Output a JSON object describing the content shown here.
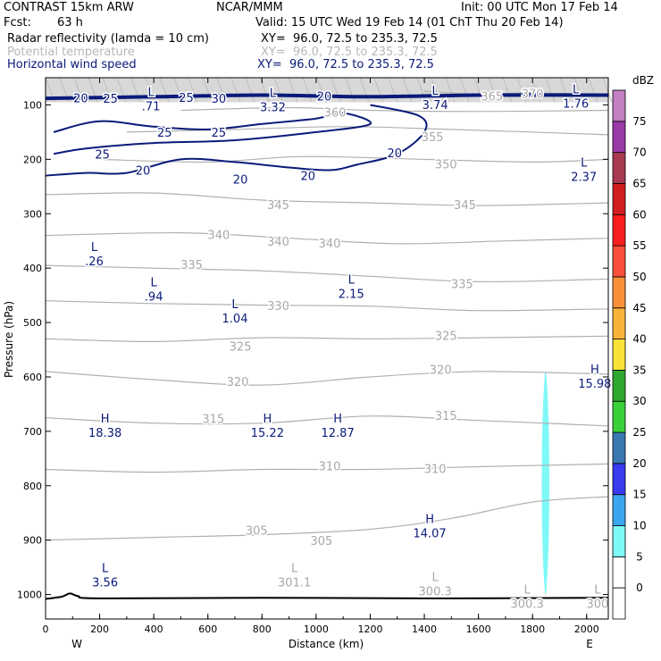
{
  "header": {
    "model": "CONTRAST 15km ARW",
    "org": "NCAR/MMM",
    "init": "Init: 00 UTC Mon 17 Feb 14",
    "fcst_label": "Fcst:",
    "fcst_value": "63 h",
    "valid": "Valid: 15 UTC Wed 19 Feb 14 (01 ChT Thu 20 Feb 14)",
    "fields": [
      {
        "name": "Radar reflectivity (lamda = 10 cm)",
        "xy": "XY=  96.0, 72.5 to 235.3, 72.5",
        "color": "#000000"
      },
      {
        "name": "Potential temperature",
        "xy": "XY=  96.0, 72.5 to 235.3, 72.5",
        "color": "#b8b8b8"
      },
      {
        "name": "Horizontal wind speed",
        "xy": "XY=  96.0, 72.5 to 235.3, 72.5",
        "color": "#0a1a7a"
      }
    ]
  },
  "chart_data": {
    "type": "cross-section",
    "xlabel": "Distance (km)",
    "ylabel": "Pressure (hPa)",
    "x_endpoints": {
      "left": "W",
      "right": "E"
    },
    "xlim": [
      0,
      2080
    ],
    "ylim": [
      1045,
      50
    ],
    "x_ticks": [
      0,
      200,
      400,
      600,
      800,
      1000,
      1200,
      1400,
      1600,
      1800,
      2000
    ],
    "y_ticks": [
      100,
      200,
      300,
      400,
      500,
      600,
      700,
      800,
      900,
      1000
    ],
    "colorbar": {
      "unit": "dBZ",
      "levels": [
        0,
        5,
        10,
        15,
        20,
        25,
        30,
        35,
        40,
        45,
        50,
        55,
        60,
        65,
        70,
        75
      ],
      "colors": [
        "#ffffff",
        "#7ff8f8",
        "#3aa6ee",
        "#3a3aee",
        "#3a78b2",
        "#3ad03a",
        "#2ea82e",
        "#f8e23a",
        "#f8b43a",
        "#f8903a",
        "#f8503a",
        "#f81e1e",
        "#d01e1e",
        "#a83a50",
        "#9a3aa8",
        "#c27fc2"
      ]
    },
    "theta_contours": [
      {
        "label": "370",
        "points": [
          [
            1400,
            75
          ],
          [
            1600,
            80
          ],
          [
            1800,
            78
          ],
          [
            2080,
            82
          ]
        ]
      },
      {
        "label": "360",
        "points": [
          [
            500,
            110
          ],
          [
            900,
            105
          ],
          [
            1200,
            110
          ],
          [
            1600,
            112
          ],
          [
            2080,
            110
          ]
        ]
      },
      {
        "label": "355",
        "points": [
          [
            300,
            150
          ],
          [
            700,
            145
          ],
          [
            1100,
            140
          ],
          [
            1500,
            145
          ],
          [
            2080,
            155
          ]
        ]
      },
      {
        "label": "350",
        "points": [
          [
            200,
            200
          ],
          [
            600,
            205
          ],
          [
            950,
            195
          ],
          [
            1400,
            200
          ],
          [
            1800,
            205
          ],
          [
            2080,
            200
          ]
        ]
      },
      {
        "label": "345",
        "points": [
          [
            0,
            265
          ],
          [
            400,
            262
          ],
          [
            800,
            275
          ],
          [
            1200,
            280
          ],
          [
            1600,
            285
          ],
          [
            2080,
            280
          ]
        ]
      },
      {
        "label": "340",
        "points": [
          [
            0,
            340
          ],
          [
            500,
            335
          ],
          [
            900,
            345
          ],
          [
            1300,
            355
          ],
          [
            1700,
            350
          ],
          [
            2080,
            345
          ]
        ]
      },
      {
        "label": "335",
        "points": [
          [
            0,
            395
          ],
          [
            400,
            400
          ],
          [
            800,
            405
          ],
          [
            1200,
            415
          ],
          [
            1600,
            425
          ],
          [
            2080,
            420
          ]
        ]
      },
      {
        "label": "330",
        "points": [
          [
            0,
            460
          ],
          [
            400,
            465
          ],
          [
            800,
            468
          ],
          [
            1200,
            470
          ],
          [
            1600,
            478
          ],
          [
            2080,
            475
          ]
        ]
      },
      {
        "label": "325",
        "points": [
          [
            0,
            530
          ],
          [
            400,
            535
          ],
          [
            800,
            528
          ],
          [
            1200,
            530
          ],
          [
            1600,
            528
          ],
          [
            2080,
            525
          ]
        ]
      },
      {
        "label": "320",
        "points": [
          [
            0,
            590
          ],
          [
            400,
            605
          ],
          [
            800,
            615
          ],
          [
            1200,
            600
          ],
          [
            1600,
            590
          ],
          [
            2080,
            595
          ]
        ]
      },
      {
        "label": "315",
        "points": [
          [
            0,
            675
          ],
          [
            400,
            685
          ],
          [
            800,
            685
          ],
          [
            1200,
            672
          ],
          [
            1600,
            680
          ],
          [
            2080,
            690
          ]
        ]
      },
      {
        "label": "310",
        "points": [
          [
            0,
            770
          ],
          [
            400,
            775
          ],
          [
            800,
            770
          ],
          [
            1200,
            770
          ],
          [
            1600,
            765
          ],
          [
            2080,
            760
          ]
        ]
      },
      {
        "label": "305",
        "points": [
          [
            0,
            900
          ],
          [
            400,
            895
          ],
          [
            800,
            890
          ],
          [
            1200,
            880
          ],
          [
            1500,
            860
          ],
          [
            1800,
            830
          ],
          [
            2080,
            820
          ]
        ]
      }
    ],
    "theta_labels": [
      {
        "text": "370",
        "x": 1800,
        "p": 80
      },
      {
        "text": "365",
        "x": 1650,
        "p": 85
      },
      {
        "text": "360",
        "x": 1070,
        "p": 115
      },
      {
        "text": "355",
        "x": 1430,
        "p": 160
      },
      {
        "text": "350",
        "x": 1480,
        "p": 210
      },
      {
        "text": "345",
        "x": 1550,
        "p": 285
      },
      {
        "text": "345",
        "x": 860,
        "p": 285
      },
      {
        "text": "340",
        "x": 640,
        "p": 340
      },
      {
        "text": "340",
        "x": 1050,
        "p": 355
      },
      {
        "text": "340",
        "x": 860,
        "p": 352
      },
      {
        "text": "335",
        "x": 540,
        "p": 395
      },
      {
        "text": "335",
        "x": 1540,
        "p": 430
      },
      {
        "text": "330",
        "x": 860,
        "p": 470
      },
      {
        "text": "325",
        "x": 1480,
        "p": 525
      },
      {
        "text": "325",
        "x": 720,
        "p": 545
      },
      {
        "text": "320",
        "x": 1460,
        "p": 588
      },
      {
        "text": "320",
        "x": 710,
        "p": 610
      },
      {
        "text": "315",
        "x": 1480,
        "p": 672
      },
      {
        "text": "315",
        "x": 620,
        "p": 678
      },
      {
        "text": "310",
        "x": 1440,
        "p": 770
      },
      {
        "text": "310",
        "x": 1050,
        "p": 765
      },
      {
        "text": "305",
        "x": 780,
        "p": 883
      },
      {
        "text": "305",
        "x": 1020,
        "p": 902
      }
    ],
    "wind_contours": [
      {
        "label": "20",
        "points": [
          [
            0,
            88
          ],
          [
            400,
            85
          ],
          [
            800,
            82
          ],
          [
            1200,
            85
          ],
          [
            1600,
            82
          ],
          [
            2080,
            82
          ]
        ]
      },
      {
        "label": "25",
        "points": [
          [
            30,
            150
          ],
          [
            200,
            130
          ],
          [
            400,
            140
          ],
          [
            600,
            145
          ],
          [
            800,
            135
          ],
          [
            1000,
            125
          ],
          [
            1100,
            115
          ],
          [
            1200,
            135
          ],
          [
            1000,
            150
          ],
          [
            700,
            165
          ],
          [
            400,
            170
          ],
          [
            150,
            180
          ],
          [
            30,
            190
          ]
        ]
      },
      {
        "label": "20",
        "points": [
          [
            0,
            230
          ],
          [
            150,
            225
          ],
          [
            300,
            225
          ],
          [
            500,
            200
          ],
          [
            700,
            205
          ],
          [
            900,
            215
          ],
          [
            1050,
            220
          ],
          [
            1150,
            210
          ],
          [
            1300,
            190
          ],
          [
            1400,
            150
          ],
          [
            1380,
            120
          ],
          [
            1200,
            100
          ]
        ]
      }
    ],
    "wind_labels": [
      {
        "text": "20",
        "x": 130,
        "p": 87
      },
      {
        "text": "25",
        "x": 240,
        "p": 88
      },
      {
        "text": "25",
        "x": 520,
        "p": 86
      },
      {
        "text": "30",
        "x": 640,
        "p": 88
      },
      {
        "text": "20",
        "x": 1030,
        "p": 84
      },
      {
        "text": "25",
        "x": 440,
        "p": 150
      },
      {
        "text": "25",
        "x": 640,
        "p": 150
      },
      {
        "text": "25",
        "x": 210,
        "p": 190
      },
      {
        "text": "20",
        "x": 360,
        "p": 220
      },
      {
        "text": "20",
        "x": 720,
        "p": 236
      },
      {
        "text": "20",
        "x": 970,
        "p": 230
      },
      {
        "text": "20",
        "x": 1290,
        "p": 188
      }
    ],
    "extrema": [
      {
        "type": "L",
        "value": ".71",
        "x": 390,
        "p": 90
      },
      {
        "type": "L",
        "value": "3.32",
        "x": 840,
        "p": 92
      },
      {
        "type": "L",
        "value": "3.74",
        "x": 1440,
        "p": 88
      },
      {
        "type": "L",
        "value": "1.76",
        "x": 1960,
        "p": 85
      },
      {
        "type": "L",
        "value": "2.37",
        "x": 1990,
        "p": 220
      },
      {
        "type": "L",
        "value": ".26",
        "x": 180,
        "p": 375
      },
      {
        "type": "L",
        "value": ".94",
        "x": 400,
        "p": 440
      },
      {
        "type": "L",
        "value": "1.04",
        "x": 700,
        "p": 480
      },
      {
        "type": "L",
        "value": "2.15",
        "x": 1130,
        "p": 435
      },
      {
        "type": "H",
        "value": "15.98",
        "x": 2030,
        "p": 600
      },
      {
        "type": "H",
        "value": "18.38",
        "x": 220,
        "p": 690
      },
      {
        "type": "H",
        "value": "15.22",
        "x": 820,
        "p": 690
      },
      {
        "type": "H",
        "value": "12.87",
        "x": 1080,
        "p": 690
      },
      {
        "type": "H",
        "value": "14.07",
        "x": 1420,
        "p": 875
      },
      {
        "type": "L",
        "value": "3.56",
        "x": 220,
        "p": 965
      },
      {
        "type": "L",
        "value": "301.1",
        "x": 920,
        "p": 965
      },
      {
        "type": "L",
        "value": "300.3",
        "x": 1440,
        "p": 982
      },
      {
        "type": "L",
        "value": "300.3",
        "x": 1780,
        "p": 1005
      },
      {
        "type": "L",
        "value": "300",
        "x": 2040,
        "p": 1005
      }
    ],
    "reflectivity_cells": [
      {
        "x": 1848,
        "p_top": 590,
        "p_bottom": 1000,
        "dbz_class": 5
      }
    ],
    "terrain": [
      [
        0,
        1008
      ],
      [
        60,
        1004
      ],
      [
        90,
        998
      ],
      [
        120,
        1003
      ],
      [
        200,
        1007
      ],
      [
        800,
        1006
      ],
      [
        1400,
        1007
      ],
      [
        2080,
        1006
      ]
    ]
  }
}
